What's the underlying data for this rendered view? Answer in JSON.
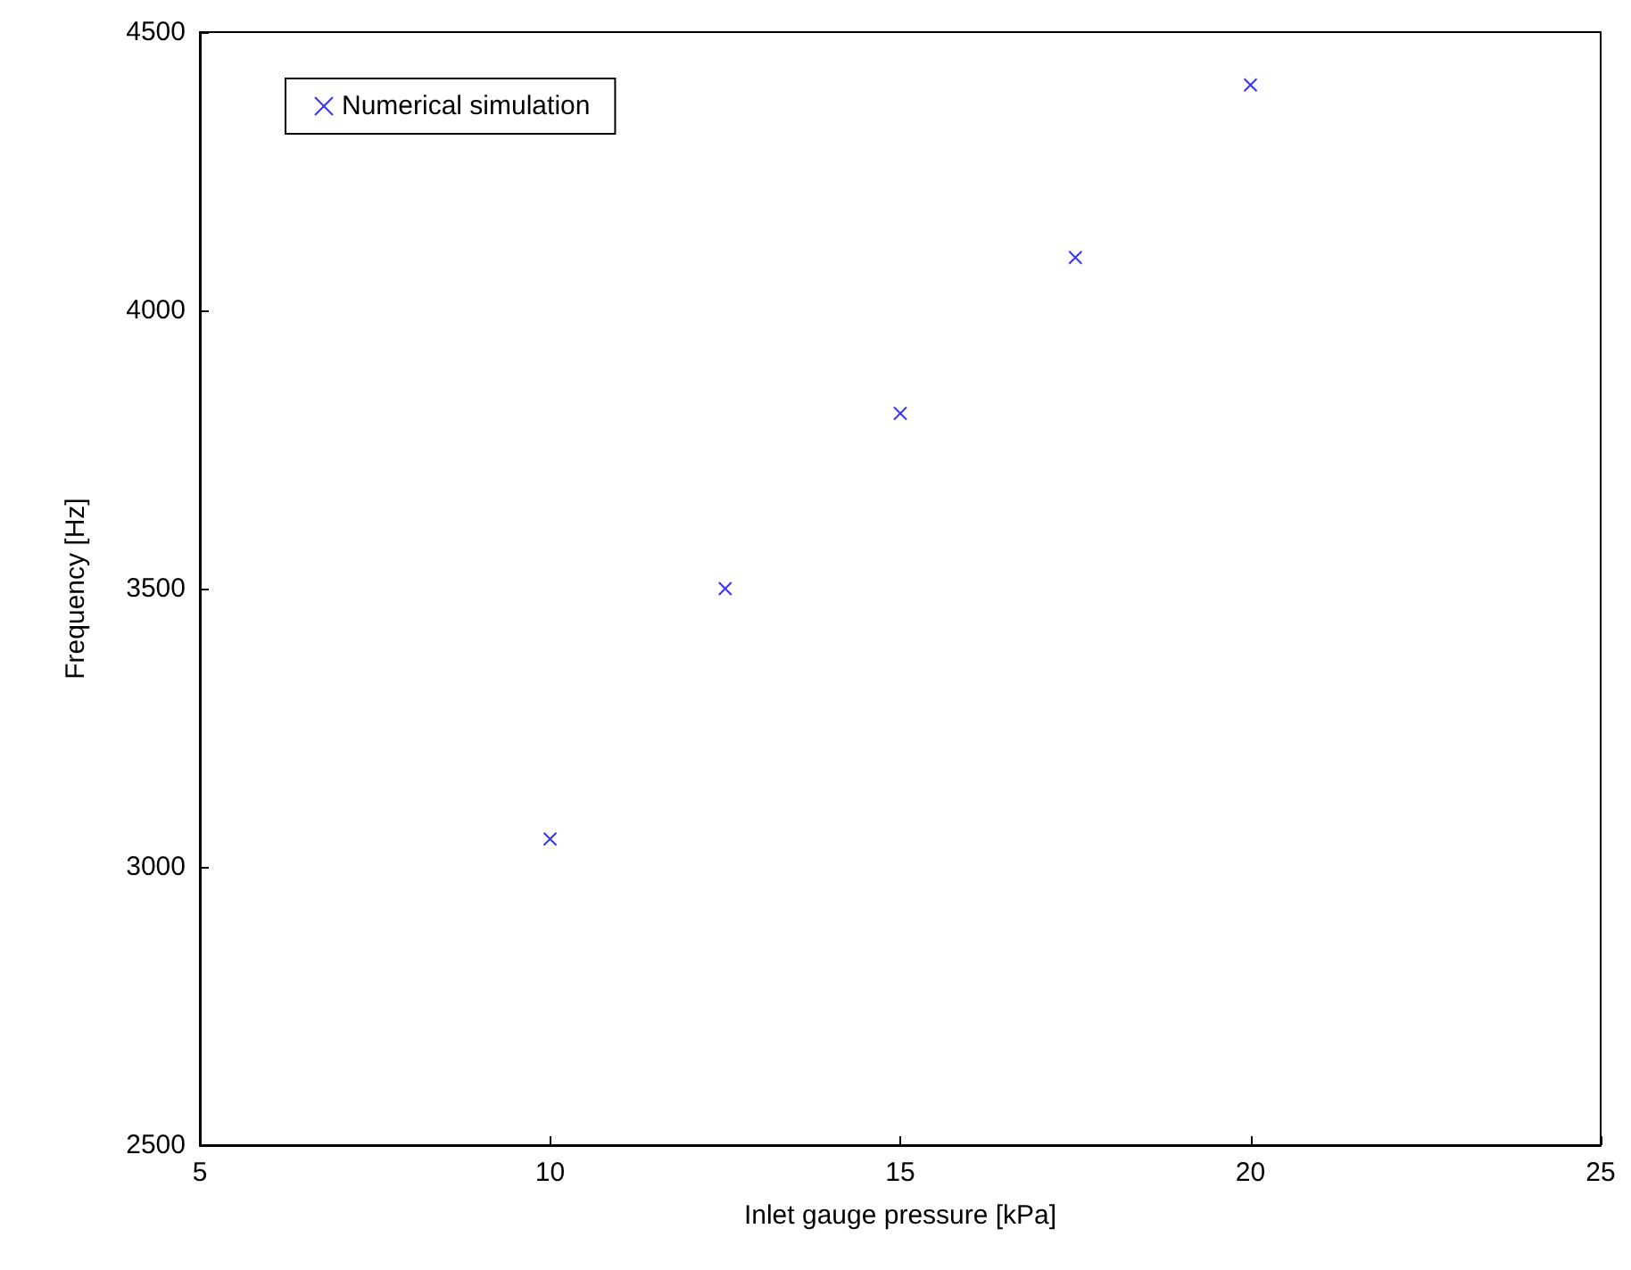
{
  "chart_data": {
    "type": "scatter",
    "xlabel": "Inlet gauge pressure [kPa]",
    "ylabel": "Frequency [Hz]",
    "x": [
      10,
      12.5,
      15,
      17.5,
      20
    ],
    "series": [
      {
        "name": "Numerical simulation",
        "color": "#0000ff",
        "values": [
          3050,
          3500,
          3815,
          4095,
          4405
        ]
      }
    ],
    "xlim": [
      5,
      25
    ],
    "xticks": [
      5,
      10,
      15,
      20,
      25
    ],
    "ylim": [
      2500,
      4500
    ],
    "yticks": [
      2500,
      3000,
      3500,
      4000,
      4500
    ],
    "marker": "cross",
    "legend": "top left",
    "grid": false
  }
}
